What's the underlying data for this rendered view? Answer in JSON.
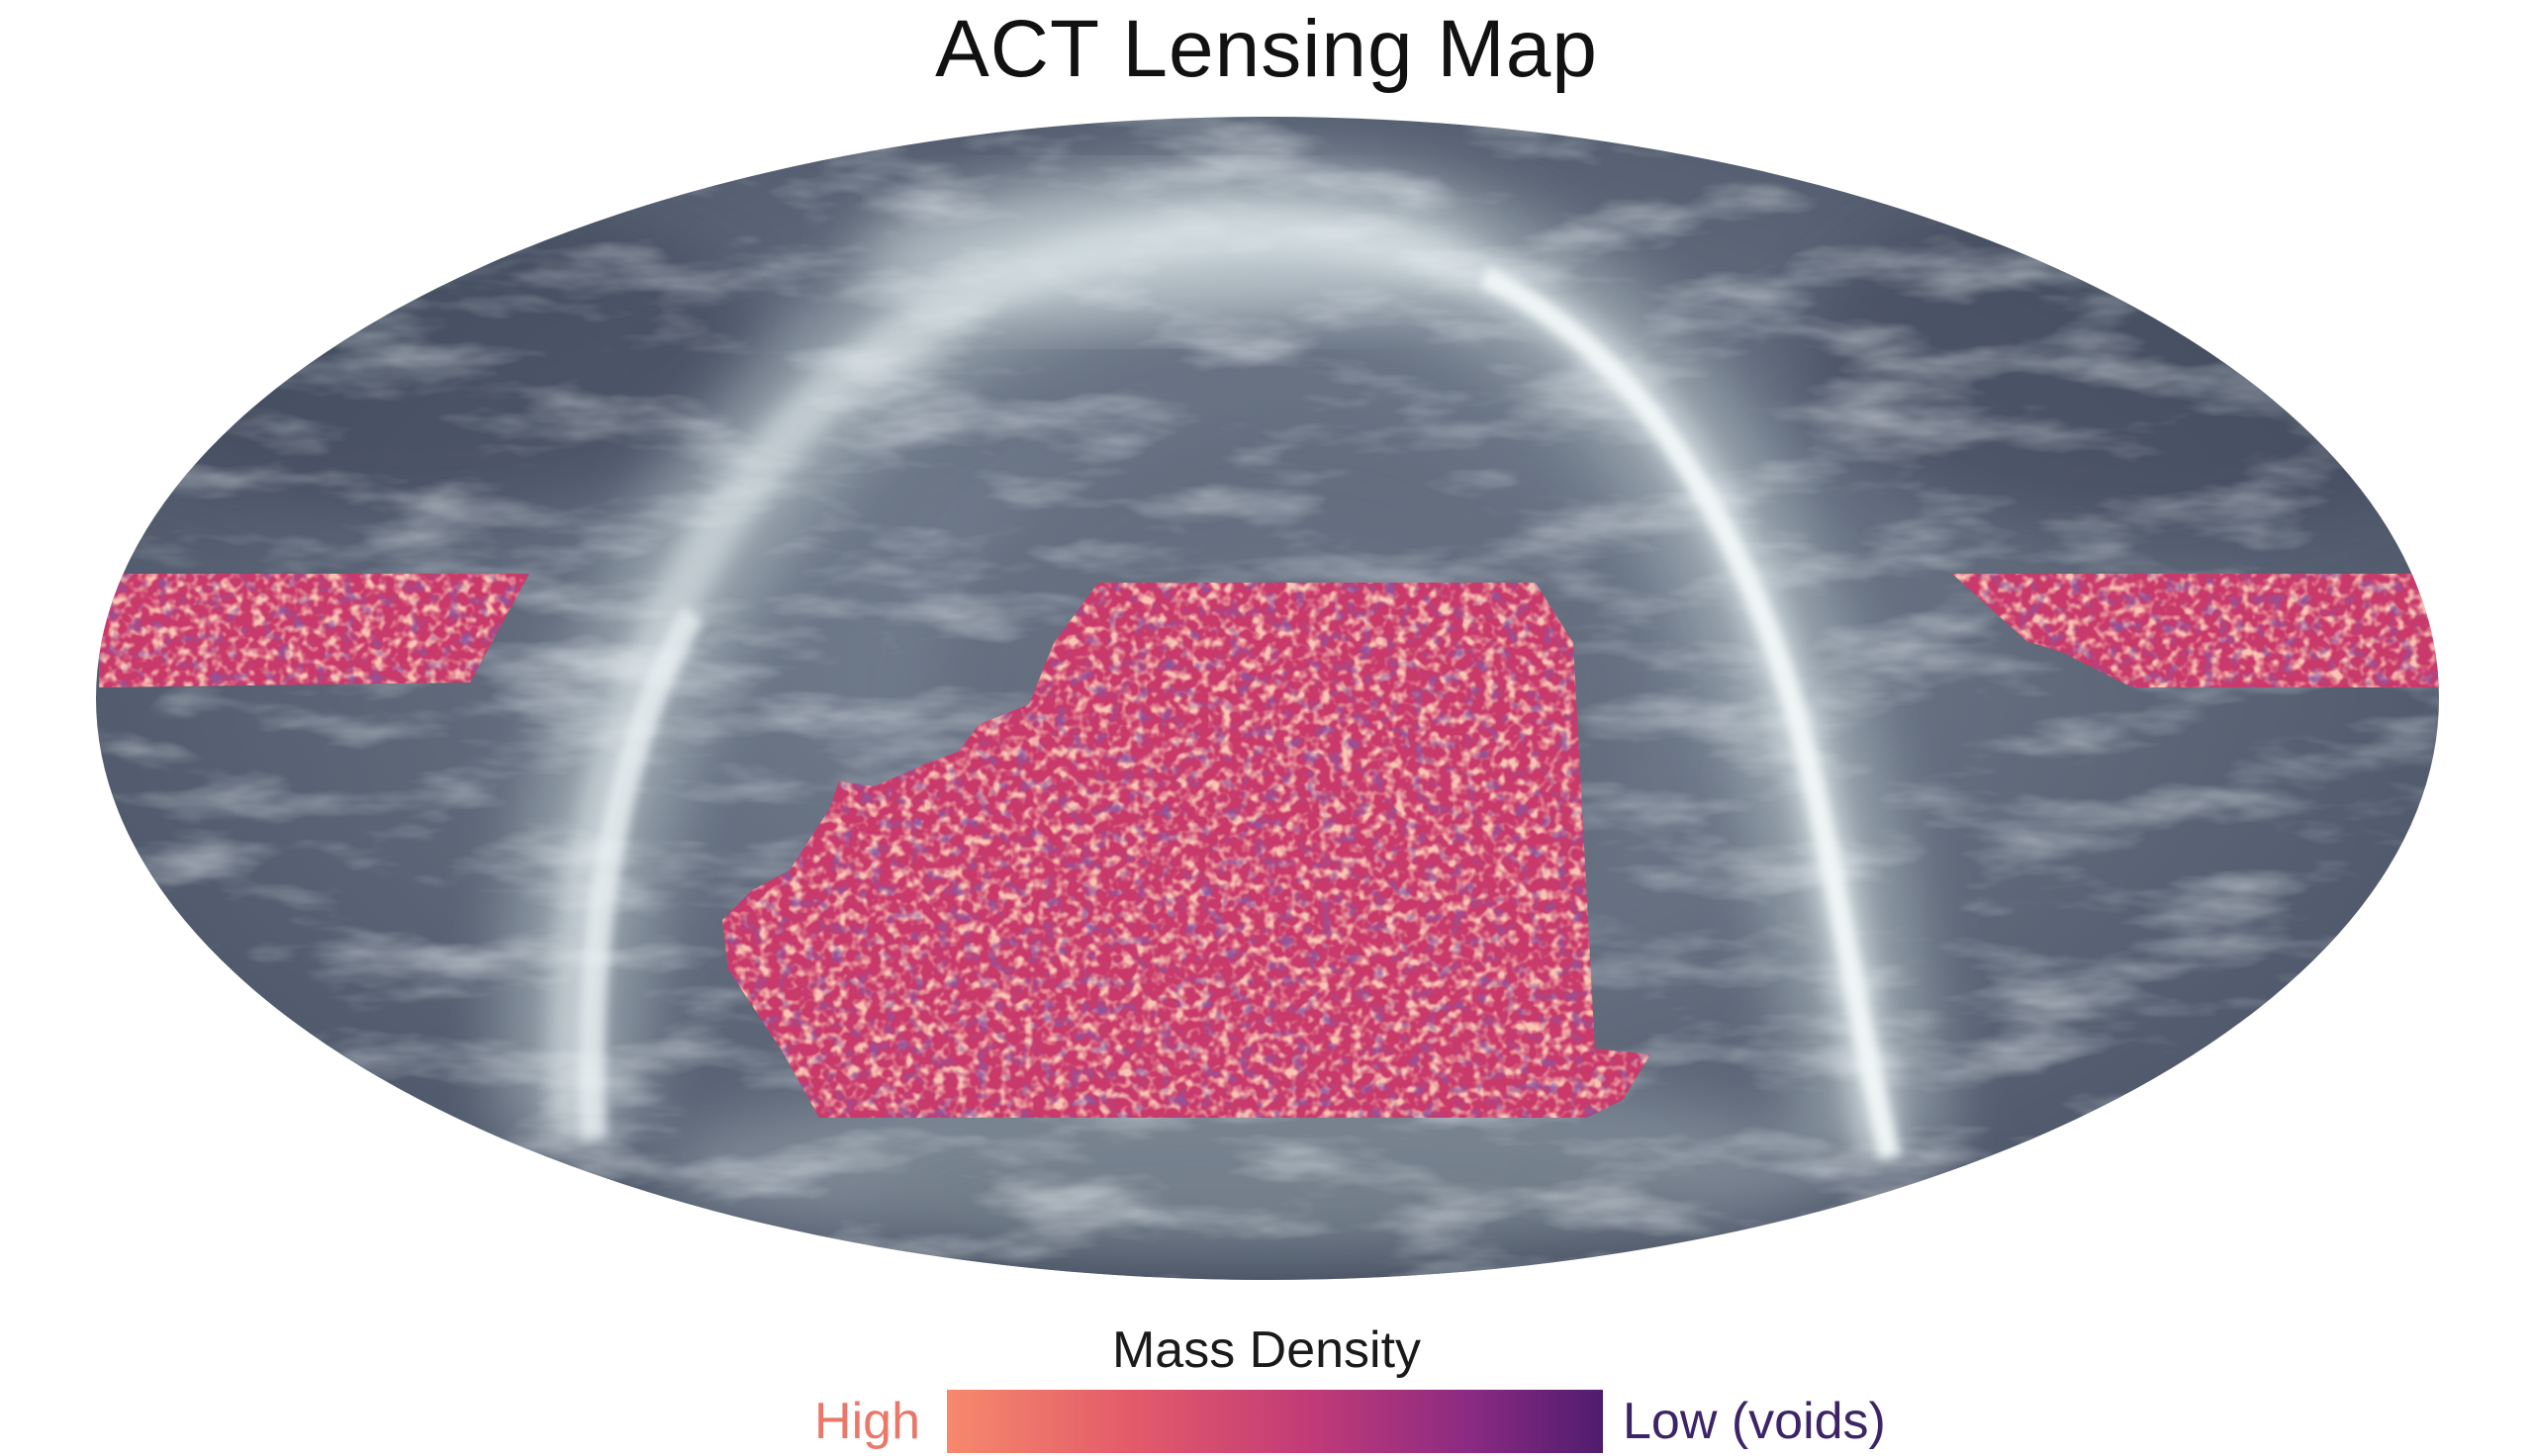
{
  "title": "ACT Lensing Map",
  "legend": {
    "title": "Mass Density",
    "high_label": "High",
    "low_label": "Low (voids)",
    "gradient_colors": [
      "#f6896c",
      "#e35b6a",
      "#c23b77",
      "#8a2a82",
      "#4f1c6e"
    ]
  },
  "colors": {
    "sky_dark": "#4d5669",
    "sky_mid": "#8e9aa6",
    "dust_light": "#e6eff1",
    "lensing_base": "#cc3d6c",
    "lensing_bright": "#f4866b",
    "lensing_dark": "#3f1a5f"
  }
}
